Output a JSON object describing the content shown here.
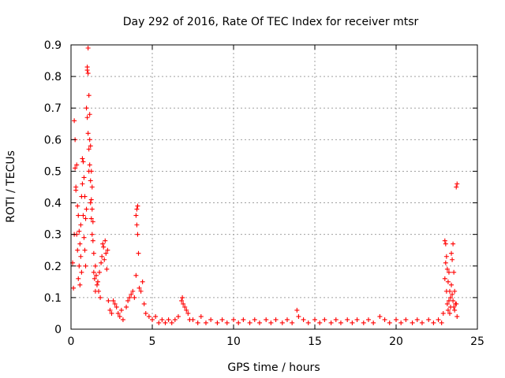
{
  "chart_data": {
    "type": "scatter",
    "title": "Day 292 of 2016, Rate Of TEC Index for receiver mtsr",
    "xlabel": "GPS time / hours",
    "ylabel": "ROTI / TECUs",
    "xlim": [
      0,
      25
    ],
    "ylim": [
      0,
      0.9
    ],
    "xticks": [
      0,
      5,
      10,
      15,
      20,
      25
    ],
    "yticks": [
      0,
      0.1,
      0.2,
      0.3,
      0.4,
      0.5,
      0.6,
      0.7,
      0.8,
      0.9
    ],
    "grid": true,
    "marker": "plus",
    "color": "#ff0000",
    "series": [
      {
        "name": "ROTI",
        "points": [
          [
            0.1,
            0.21
          ],
          [
            0.15,
            0.13
          ],
          [
            0.2,
            0.66
          ],
          [
            0.2,
            0.3
          ],
          [
            0.25,
            0.6
          ],
          [
            0.25,
            0.51
          ],
          [
            0.3,
            0.45
          ],
          [
            0.3,
            0.44
          ],
          [
            0.35,
            0.52
          ],
          [
            0.35,
            0.3
          ],
          [
            0.4,
            0.39
          ],
          [
            0.4,
            0.25
          ],
          [
            0.45,
            0.36
          ],
          [
            0.45,
            0.16
          ],
          [
            0.5,
            0.31
          ],
          [
            0.5,
            0.2
          ],
          [
            0.55,
            0.27
          ],
          [
            0.55,
            0.14
          ],
          [
            0.6,
            0.33
          ],
          [
            0.6,
            0.23
          ],
          [
            0.65,
            0.42
          ],
          [
            0.65,
            0.18
          ],
          [
            0.7,
            0.54
          ],
          [
            0.7,
            0.46
          ],
          [
            0.75,
            0.53
          ],
          [
            0.75,
            0.36
          ],
          [
            0.8,
            0.48
          ],
          [
            0.8,
            0.29
          ],
          [
            0.85,
            0.42
          ],
          [
            0.85,
            0.25
          ],
          [
            0.9,
            0.35
          ],
          [
            0.9,
            0.2
          ],
          [
            0.95,
            0.7
          ],
          [
            0.95,
            0.38
          ],
          [
            1.0,
            0.83
          ],
          [
            1.0,
            0.82
          ],
          [
            1.0,
            0.67
          ],
          [
            1.05,
            0.89
          ],
          [
            1.05,
            0.81
          ],
          [
            1.05,
            0.62
          ],
          [
            1.1,
            0.74
          ],
          [
            1.1,
            0.57
          ],
          [
            1.1,
            0.5
          ],
          [
            1.15,
            0.68
          ],
          [
            1.15,
            0.6
          ],
          [
            1.15,
            0.52
          ],
          [
            1.2,
            0.58
          ],
          [
            1.2,
            0.47
          ],
          [
            1.2,
            0.4
          ],
          [
            1.25,
            0.5
          ],
          [
            1.25,
            0.41
          ],
          [
            1.25,
            0.35
          ],
          [
            1.3,
            0.45
          ],
          [
            1.3,
            0.38
          ],
          [
            1.3,
            0.3
          ],
          [
            1.35,
            0.34
          ],
          [
            1.35,
            0.28
          ],
          [
            1.4,
            0.24
          ],
          [
            1.4,
            0.18
          ],
          [
            1.45,
            0.16
          ],
          [
            1.5,
            0.2
          ],
          [
            1.5,
            0.12
          ],
          [
            1.55,
            0.17
          ],
          [
            1.6,
            0.14
          ],
          [
            1.65,
            0.15
          ],
          [
            1.7,
            0.12
          ],
          [
            1.75,
            0.18
          ],
          [
            1.8,
            0.1
          ],
          [
            1.85,
            0.21
          ],
          [
            1.9,
            0.23
          ],
          [
            1.95,
            0.27
          ],
          [
            2.0,
            0.26
          ],
          [
            2.05,
            0.22
          ],
          [
            2.1,
            0.28
          ],
          [
            2.15,
            0.24
          ],
          [
            2.2,
            0.19
          ],
          [
            2.25,
            0.25
          ],
          [
            2.3,
            0.09
          ],
          [
            2.4,
            0.06
          ],
          [
            2.5,
            0.05
          ],
          [
            2.6,
            0.09
          ],
          [
            2.7,
            0.08
          ],
          [
            2.8,
            0.07
          ],
          [
            2.9,
            0.05
          ],
          [
            3.0,
            0.04
          ],
          [
            3.1,
            0.06
          ],
          [
            3.2,
            0.03
          ],
          [
            3.4,
            0.07
          ],
          [
            3.5,
            0.09
          ],
          [
            3.6,
            0.1
          ],
          [
            3.7,
            0.11
          ],
          [
            3.8,
            0.12
          ],
          [
            3.9,
            0.1
          ],
          [
            4.0,
            0.36
          ],
          [
            4.0,
            0.17
          ],
          [
            4.05,
            0.38
          ],
          [
            4.05,
            0.33
          ],
          [
            4.1,
            0.39
          ],
          [
            4.1,
            0.3
          ],
          [
            4.15,
            0.24
          ],
          [
            4.2,
            0.13
          ],
          [
            4.3,
            0.12
          ],
          [
            4.4,
            0.15
          ],
          [
            4.5,
            0.08
          ],
          [
            4.6,
            0.05
          ],
          [
            4.8,
            0.04
          ],
          [
            5.0,
            0.03
          ],
          [
            5.2,
            0.04
          ],
          [
            5.4,
            0.02
          ],
          [
            5.6,
            0.03
          ],
          [
            5.8,
            0.02
          ],
          [
            6.0,
            0.03
          ],
          [
            6.2,
            0.02
          ],
          [
            6.4,
            0.03
          ],
          [
            6.6,
            0.04
          ],
          [
            6.8,
            0.09
          ],
          [
            6.85,
            0.1
          ],
          [
            6.9,
            0.08
          ],
          [
            7.0,
            0.07
          ],
          [
            7.1,
            0.06
          ],
          [
            7.2,
            0.05
          ],
          [
            7.3,
            0.03
          ],
          [
            7.5,
            0.03
          ],
          [
            7.8,
            0.02
          ],
          [
            8.0,
            0.04
          ],
          [
            8.3,
            0.02
          ],
          [
            8.6,
            0.03
          ],
          [
            9.0,
            0.02
          ],
          [
            9.3,
            0.03
          ],
          [
            9.6,
            0.02
          ],
          [
            10.0,
            0.03
          ],
          [
            10.3,
            0.02
          ],
          [
            10.6,
            0.03
          ],
          [
            11.0,
            0.02
          ],
          [
            11.3,
            0.03
          ],
          [
            11.6,
            0.02
          ],
          [
            12.0,
            0.03
          ],
          [
            12.3,
            0.02
          ],
          [
            12.6,
            0.03
          ],
          [
            13.0,
            0.02
          ],
          [
            13.3,
            0.03
          ],
          [
            13.6,
            0.02
          ],
          [
            13.9,
            0.06
          ],
          [
            14.0,
            0.04
          ],
          [
            14.3,
            0.03
          ],
          [
            14.6,
            0.02
          ],
          [
            15.0,
            0.03
          ],
          [
            15.3,
            0.02
          ],
          [
            15.6,
            0.03
          ],
          [
            16.0,
            0.02
          ],
          [
            16.3,
            0.03
          ],
          [
            16.6,
            0.02
          ],
          [
            17.0,
            0.03
          ],
          [
            17.3,
            0.02
          ],
          [
            17.6,
            0.03
          ],
          [
            18.0,
            0.02
          ],
          [
            18.3,
            0.03
          ],
          [
            18.6,
            0.02
          ],
          [
            19.0,
            0.04
          ],
          [
            19.3,
            0.03
          ],
          [
            19.6,
            0.02
          ],
          [
            20.0,
            0.03
          ],
          [
            20.3,
            0.02
          ],
          [
            20.6,
            0.03
          ],
          [
            21.0,
            0.02
          ],
          [
            21.3,
            0.03
          ],
          [
            21.6,
            0.02
          ],
          [
            22.0,
            0.03
          ],
          [
            22.3,
            0.02
          ],
          [
            22.6,
            0.03
          ],
          [
            22.8,
            0.02
          ],
          [
            22.9,
            0.05
          ],
          [
            23.0,
            0.28
          ],
          [
            23.0,
            0.16
          ],
          [
            23.05,
            0.27
          ],
          [
            23.05,
            0.21
          ],
          [
            23.1,
            0.23
          ],
          [
            23.1,
            0.12
          ],
          [
            23.15,
            0.19
          ],
          [
            23.15,
            0.08
          ],
          [
            23.2,
            0.15
          ],
          [
            23.2,
            0.06
          ],
          [
            23.25,
            0.18
          ],
          [
            23.25,
            0.09
          ],
          [
            23.3,
            0.12
          ],
          [
            23.3,
            0.05
          ],
          [
            23.35,
            0.1
          ],
          [
            23.35,
            0.07
          ],
          [
            23.4,
            0.24
          ],
          [
            23.4,
            0.14
          ],
          [
            23.45,
            0.22
          ],
          [
            23.45,
            0.11
          ],
          [
            23.5,
            0.27
          ],
          [
            23.5,
            0.09
          ],
          [
            23.55,
            0.18
          ],
          [
            23.55,
            0.07
          ],
          [
            23.6,
            0.12
          ],
          [
            23.6,
            0.06
          ],
          [
            23.65,
            0.08
          ],
          [
            23.7,
            0.45
          ],
          [
            23.7,
            0.08
          ],
          [
            23.75,
            0.46
          ],
          [
            23.75,
            0.04
          ]
        ]
      }
    ]
  }
}
